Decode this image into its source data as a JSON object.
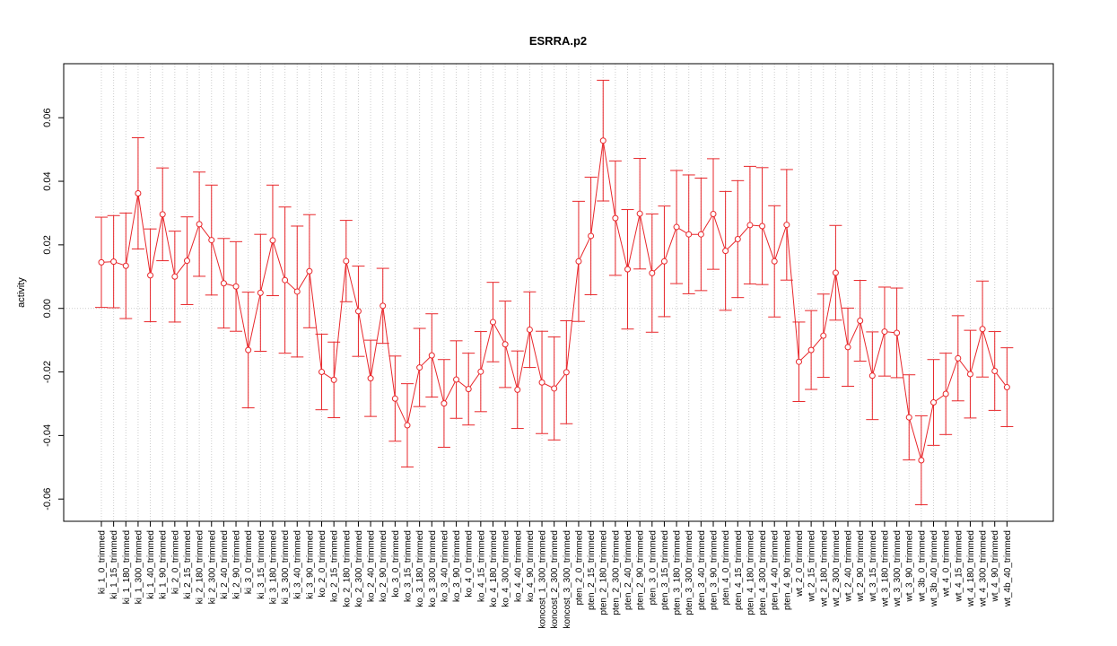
{
  "chart_data": {
    "type": "line",
    "title": "ESRRA.p2",
    "xlabel": "",
    "ylabel": "activity",
    "ylim": [
      -0.067,
      0.077
    ],
    "yticks": [
      -0.06,
      -0.04,
      -0.02,
      0.0,
      0.02,
      0.04,
      0.06
    ],
    "ytick_labels": [
      "-0.06",
      "-0.04",
      "-0.02",
      "0.00",
      "0.02",
      "0.04",
      "0.06"
    ],
    "grid": true,
    "colors": {
      "series": "#e8272b",
      "grid": "#cccccc",
      "axis": "#000000"
    },
    "categories": [
      "ki_1_0_trimmed",
      "ki_1_15_trimmed",
      "ki_1_180_trimmed",
      "ki_1_300_trimmed",
      "ki_1_40_trimmed",
      "ki_1_90_trimmed",
      "ki_2_0_trimmed",
      "ki_2_15_trimmed",
      "ki_2_180_trimmed",
      "ki_2_300_trimmed",
      "ki_2_40_trimmed",
      "ki_2_90_trimmed",
      "ki_3_0_trimmed",
      "ki_3_15_trimmed",
      "ki_3_180_trimmed",
      "ki_3_300_trimmed",
      "ki_3_40_trimmed",
      "ki_3_90_trimmed",
      "ko_2_0_trimmed",
      "ko_2_15_trimmed",
      "ko_2_180_trimmed",
      "ko_2_300_trimmed",
      "ko_2_40_trimmed",
      "ko_2_90_trimmed",
      "ko_3_0_trimmed",
      "ko_3_15_trimmed",
      "ko_3_180_trimmed",
      "ko_3_300_trimmed",
      "ko_3_40_trimmed",
      "ko_3_90_trimmed",
      "ko_4_0_trimmed",
      "ko_4_15_trimmed",
      "ko_4_180_trimmed",
      "ko_4_300_trimmed",
      "ko_4_40_trimmed",
      "ko_4_90_trimmed",
      "koncost_1_300_trimmed",
      "koncost_2_300_trimmed",
      "koncost_3_300_trimmed",
      "pten_2_0_trimmed",
      "pten_2_15_trimmed",
      "pten_2_180_trimmed",
      "pten_2_300_trimmed",
      "pten_2_40_trimmed",
      "pten_2_90_trimmed",
      "pten_3_0_trimmed",
      "pten_3_15_trimmed",
      "pten_3_180_trimmed",
      "pten_3_300_trimmed",
      "pten_3_40_trimmed",
      "pten_3_90_trimmed",
      "pten_4_0_trimmed",
      "pten_4_15_trimmed",
      "pten_4_180_trimmed",
      "pten_4_300_trimmed",
      "pten_4_40_trimmed",
      "pten_4_90_trimmed",
      "wt_2_0_trimmed",
      "wt_2_15_trimmed",
      "wt_2_180_trimmed",
      "wt_2_300_trimmed",
      "wt_2_40_trimmed",
      "wt_2_90_trimmed",
      "wt_3_15_trimmed",
      "wt_3_180_trimmed",
      "wt_3_300_trimmed",
      "wt_3_90_trimmed",
      "wt_3b_0_trimmed",
      "wt_3b_40_trimmed",
      "wt_4_0_trimmed",
      "wt_4_15_trimmed",
      "wt_4_180_trimmed",
      "wt_4_300_trimmed",
      "wt_4_90_trimmed",
      "wt_4b_40_trimmed"
    ],
    "values": [
      0.0145,
      0.0147,
      0.0134,
      0.0362,
      0.0104,
      0.0296,
      0.01,
      0.015,
      0.0265,
      0.0215,
      0.0079,
      0.0069,
      -0.0131,
      0.0049,
      0.0214,
      0.0089,
      0.0053,
      0.0117,
      -0.02,
      -0.0225,
      0.0149,
      -0.0009,
      -0.022,
      0.0008,
      -0.0284,
      -0.0368,
      -0.0186,
      -0.0148,
      -0.0299,
      -0.0224,
      -0.0254,
      -0.0199,
      -0.0043,
      -0.0113,
      -0.0256,
      -0.0067,
      -0.0233,
      -0.0252,
      -0.0201,
      0.0148,
      0.0228,
      0.0528,
      0.0284,
      0.0123,
      0.0298,
      0.0111,
      0.0148,
      0.0256,
      0.0233,
      0.0233,
      0.0297,
      0.0181,
      0.0218,
      0.0262,
      0.0259,
      0.0148,
      0.0263,
      -0.0168,
      -0.0131,
      -0.0086,
      0.0112,
      -0.0122,
      -0.0039,
      -0.0212,
      -0.0073,
      -0.0077,
      -0.0343,
      -0.0478,
      -0.0296,
      -0.0269,
      -0.0157,
      -0.0207,
      -0.0065,
      -0.0197,
      -0.0248
    ],
    "errors": [
      0.0142,
      0.0145,
      0.0166,
      0.0175,
      0.0146,
      0.0146,
      0.0143,
      0.0138,
      0.0164,
      0.0173,
      0.0141,
      0.0141,
      0.0182,
      0.0184,
      0.0174,
      0.023,
      0.0206,
      0.0178,
      0.0119,
      0.0119,
      0.0128,
      0.0142,
      0.012,
      0.0118,
      0.0134,
      0.0131,
      0.0123,
      0.0131,
      0.0138,
      0.0122,
      0.0113,
      0.0126,
      0.0125,
      0.0136,
      0.0122,
      0.0119,
      0.0161,
      0.0162,
      0.0162,
      0.0189,
      0.0185,
      0.019,
      0.018,
      0.0188,
      0.0174,
      0.0186,
      0.0174,
      0.0178,
      0.0187,
      0.0177,
      0.0174,
      0.0187,
      0.0184,
      0.0185,
      0.0184,
      0.0175,
      0.0174,
      0.0125,
      0.0124,
      0.0131,
      0.0149,
      0.0123,
      0.0127,
      0.0138,
      0.014,
      0.0141,
      0.0134,
      0.014,
      0.0135,
      0.0128,
      0.0134,
      0.0138,
      0.0151,
      0.0124,
      0.0124
    ]
  }
}
